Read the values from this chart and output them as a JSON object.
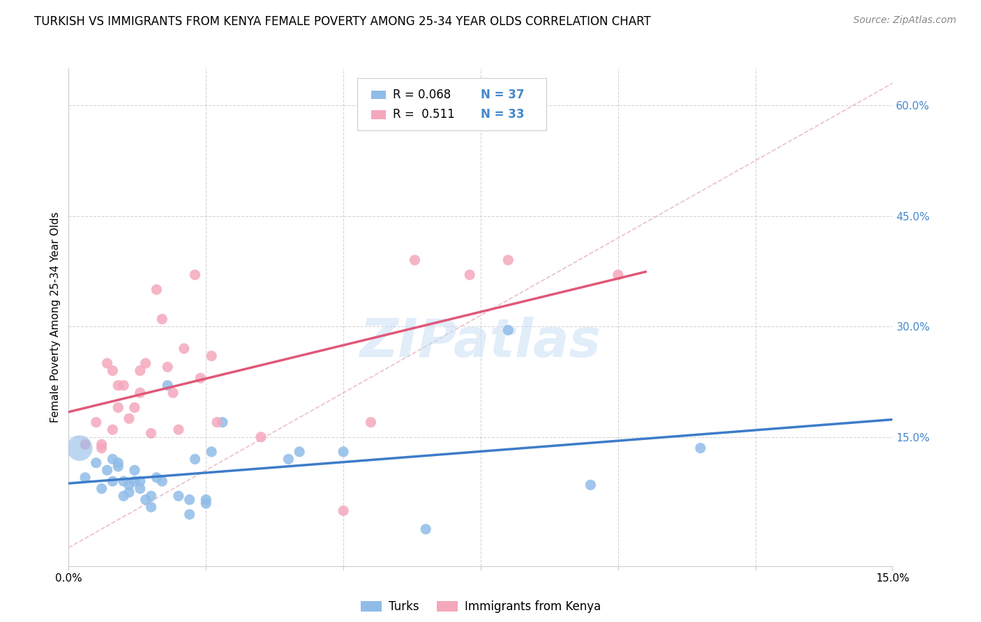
{
  "title": "TURKISH VS IMMIGRANTS FROM KENYA FEMALE POVERTY AMONG 25-34 YEAR OLDS CORRELATION CHART",
  "source": "Source: ZipAtlas.com",
  "ylabel": "Female Poverty Among 25-34 Year Olds",
  "xlim": [
    0.0,
    0.15
  ],
  "ylim": [
    -0.025,
    0.65
  ],
  "watermark": "ZIPatlas",
  "turks_color": "#90bce8",
  "kenya_color": "#f4a8bc",
  "turks_line_color": "#3d7cc9",
  "kenya_line_color": "#e05878",
  "diagonal_color": "#e8b8c4",
  "right_label_color": "#4488cc",
  "grid_color": "#cccccc",
  "turks_x": [
    0.003,
    0.005,
    0.006,
    0.007,
    0.008,
    0.008,
    0.009,
    0.009,
    0.01,
    0.01,
    0.011,
    0.011,
    0.012,
    0.012,
    0.013,
    0.013,
    0.014,
    0.015,
    0.015,
    0.016,
    0.017,
    0.018,
    0.02,
    0.022,
    0.022,
    0.023,
    0.025,
    0.025,
    0.026,
    0.028,
    0.04,
    0.042,
    0.05,
    0.065,
    0.08,
    0.095,
    0.115
  ],
  "turks_y": [
    0.095,
    0.115,
    0.08,
    0.105,
    0.12,
    0.09,
    0.115,
    0.11,
    0.07,
    0.09,
    0.075,
    0.085,
    0.105,
    0.09,
    0.08,
    0.09,
    0.065,
    0.055,
    0.07,
    0.095,
    0.09,
    0.22,
    0.07,
    0.065,
    0.045,
    0.12,
    0.065,
    0.06,
    0.13,
    0.17,
    0.12,
    0.13,
    0.13,
    0.025,
    0.295,
    0.085,
    0.135
  ],
  "turks_big_x": [
    0.002
  ],
  "turks_big_y": [
    0.135
  ],
  "kenya_x": [
    0.003,
    0.005,
    0.006,
    0.006,
    0.007,
    0.008,
    0.008,
    0.009,
    0.009,
    0.01,
    0.011,
    0.012,
    0.013,
    0.013,
    0.014,
    0.015,
    0.016,
    0.017,
    0.018,
    0.019,
    0.02,
    0.021,
    0.023,
    0.024,
    0.026,
    0.027,
    0.035,
    0.05,
    0.055,
    0.063,
    0.073,
    0.08,
    0.1
  ],
  "kenya_y": [
    0.14,
    0.17,
    0.135,
    0.14,
    0.25,
    0.16,
    0.24,
    0.22,
    0.19,
    0.22,
    0.175,
    0.19,
    0.21,
    0.24,
    0.25,
    0.155,
    0.35,
    0.31,
    0.245,
    0.21,
    0.16,
    0.27,
    0.37,
    0.23,
    0.26,
    0.17,
    0.15,
    0.05,
    0.17,
    0.39,
    0.37,
    0.39,
    0.37
  ],
  "right_yticks": [
    0.0,
    0.15,
    0.3,
    0.45,
    0.6
  ],
  "right_ytick_labels": [
    "",
    "15.0%",
    "30.0%",
    "45.0%",
    "60.0%"
  ],
  "legend_r1": "R = 0.068",
  "legend_n1": "N = 37",
  "legend_r2": "R =  0.511",
  "legend_n2": "N = 33",
  "title_fontsize": 12,
  "source_fontsize": 10,
  "tick_fontsize": 11,
  "ylabel_fontsize": 11,
  "legend_fontsize": 12,
  "watermark_fontsize": 55
}
